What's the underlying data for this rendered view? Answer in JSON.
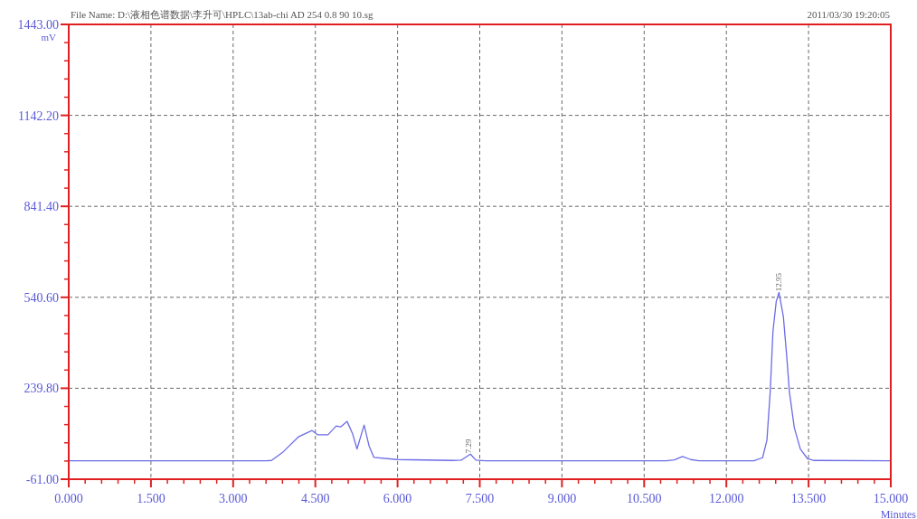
{
  "chart_data": {
    "type": "line",
    "title": "File Name: D:\\液相色谱数据\\李升可\\HPLC\\13ab-chi AD 254 0.8 90 10.sg",
    "subtitle": "2011/03/30 19:20:05",
    "xlabel": "Minutes",
    "ylabel": "mV",
    "xlim": [
      0,
      15
    ],
    "ylim": [
      -61,
      1443
    ],
    "xticks": [
      {
        "value": 0,
        "label": "0.000"
      },
      {
        "value": 1.5,
        "label": "1.500"
      },
      {
        "value": 3,
        "label": "3.000"
      },
      {
        "value": 4.5,
        "label": "4.500"
      },
      {
        "value": 6,
        "label": "6.000"
      },
      {
        "value": 7.5,
        "label": "7.500"
      },
      {
        "value": 9,
        "label": "9.000"
      },
      {
        "value": 10.5,
        "label": "10.500"
      },
      {
        "value": 12,
        "label": "12.000"
      },
      {
        "value": 13.5,
        "label": "13.500"
      },
      {
        "value": 15,
        "label": "15.000"
      }
    ],
    "yticks": [
      {
        "value": -61,
        "label": "-61.00"
      },
      {
        "value": 239.8,
        "label": "239.80"
      },
      {
        "value": 540.6,
        "label": "540.60"
      },
      {
        "value": 841.4,
        "label": "841.40"
      },
      {
        "value": 1142.2,
        "label": "1142.20"
      },
      {
        "value": 1443,
        "label": "1443.00"
      }
    ],
    "grid": true,
    "series": [
      {
        "color": "#6c6ce6",
        "x": [
          0,
          3.0,
          3.6,
          3.7,
          3.91,
          4.19,
          4.44,
          4.54,
          4.73,
          4.88,
          4.96,
          5.08,
          5.18,
          5.26,
          5.39,
          5.48,
          5.57,
          6.0,
          7.0,
          7.16,
          7.33,
          7.43,
          7.6,
          9.0,
          10.9,
          11.05,
          11.2,
          11.35,
          11.5,
          12.5,
          12.66,
          12.74,
          12.8,
          12.85,
          12.91,
          12.96,
          13.04,
          13.1,
          13.15,
          13.24,
          13.35,
          13.48,
          13.6,
          15.0
        ],
        "values": [
          0,
          0,
          0,
          1,
          29,
          79,
          100,
          86,
          86,
          115,
          112,
          130,
          89,
          39,
          118,
          49,
          11,
          4,
          1,
          2,
          22,
          2,
          0,
          0,
          0,
          3,
          14,
          4,
          0,
          0,
          10,
          68,
          228,
          427,
          527,
          557,
          477,
          349,
          228,
          109,
          39,
          7,
          1,
          0
        ]
      }
    ],
    "annotations": [
      {
        "text": "7.29",
        "x": 7.29,
        "y": 22
      },
      {
        "text": "12.95",
        "x": 12.95,
        "y": 557
      }
    ]
  }
}
